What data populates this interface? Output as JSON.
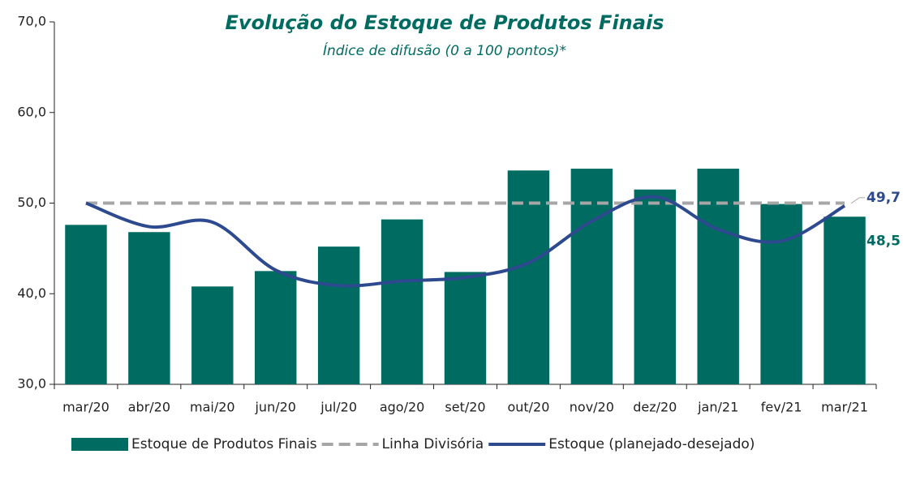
{
  "chart_data": {
    "type": "bar-line",
    "title": "Evolução do Estoque de Produtos Finais",
    "subtitle": "Índice de difusão (0 a 100 pontos)*",
    "categories": [
      "mar/20",
      "abr/20",
      "mai/20",
      "jun/20",
      "jul/20",
      "ago/20",
      "set/20",
      "out/20",
      "nov/20",
      "dez/20",
      "jan/21",
      "fev/21",
      "mar/21"
    ],
    "series": [
      {
        "name": "Estoque de Produtos Finais",
        "type": "bar",
        "color": "#006b61",
        "values": [
          47.6,
          46.8,
          40.8,
          42.5,
          45.2,
          48.2,
          42.4,
          53.6,
          53.8,
          51.5,
          53.8,
          49.9,
          48.5
        ],
        "value_labels": [
          null,
          null,
          null,
          null,
          null,
          null,
          null,
          null,
          null,
          null,
          null,
          null,
          "48,5"
        ]
      },
      {
        "name": "Linha Divisória",
        "type": "dashed-line",
        "color": "#a6a6a6",
        "values": [
          50,
          50,
          50,
          50,
          50,
          50,
          50,
          50,
          50,
          50,
          50,
          50,
          50
        ]
      },
      {
        "name": "Estoque (planejado-desejado)",
        "type": "line",
        "color": "#2e4a8f",
        "values": [
          50.0,
          47.4,
          47.9,
          42.6,
          40.9,
          41.4,
          41.8,
          43.4,
          48.0,
          50.7,
          47.1,
          45.8,
          49.7
        ],
        "value_labels": [
          null,
          null,
          null,
          null,
          null,
          null,
          null,
          null,
          null,
          null,
          null,
          null,
          "49,7"
        ]
      }
    ],
    "ylim": [
      30,
      70
    ],
    "yticks": [
      {
        "value": 30,
        "label": "30,0"
      },
      {
        "value": 40,
        "label": "40,0"
      },
      {
        "value": 50,
        "label": "50,0"
      },
      {
        "value": 60,
        "label": "60,0"
      },
      {
        "value": 70,
        "label": "70,0"
      }
    ],
    "grid": false,
    "legend": "bottom"
  }
}
